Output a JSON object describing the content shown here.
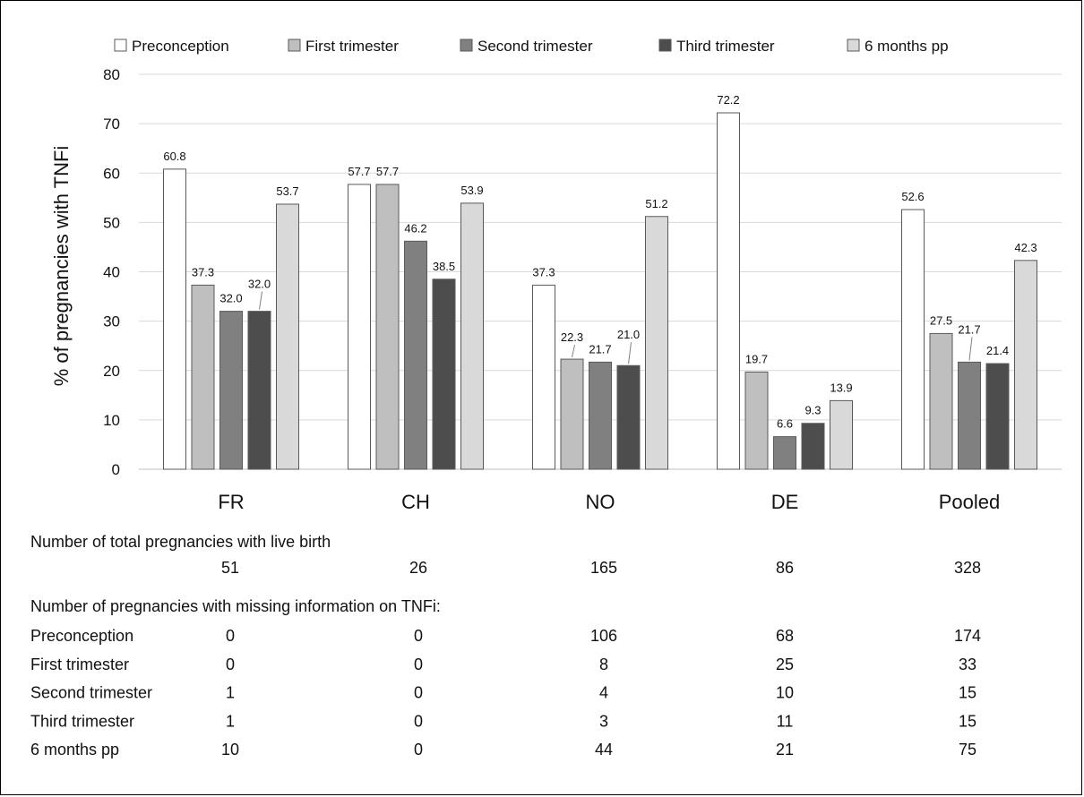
{
  "chart_data": {
    "type": "bar",
    "ylabel": "% of pregnancies with TNFi",
    "xlabel": "",
    "ylim": [
      0,
      80
    ],
    "yticks": [
      0,
      10,
      20,
      30,
      40,
      50,
      60,
      70,
      80
    ],
    "grid": true,
    "legend_position": "top",
    "categories": [
      "FR",
      "CH",
      "NO",
      "DE",
      "Pooled"
    ],
    "series": [
      {
        "name": "Preconception",
        "color": "#ffffff",
        "values": [
          60.8,
          57.7,
          37.3,
          72.2,
          52.6
        ],
        "labels": [
          "60.8",
          "57.7",
          "37.3",
          "72.2",
          "52.6"
        ]
      },
      {
        "name": "First trimester",
        "color": "#bfbfbf",
        "values": [
          37.3,
          57.7,
          22.3,
          19.7,
          27.5
        ],
        "labels": [
          "37.3",
          "57.7",
          "22.3",
          "19.7",
          "27.5"
        ]
      },
      {
        "name": "Second trimester",
        "color": "#808080",
        "values": [
          32.0,
          46.2,
          21.7,
          6.6,
          21.7
        ],
        "labels": [
          "32.0",
          "46.2",
          "21.7",
          "6.6",
          "21.7"
        ]
      },
      {
        "name": "Third trimester",
        "color": "#4d4d4d",
        "values": [
          32.0,
          38.5,
          21.0,
          9.3,
          21.4
        ],
        "labels": [
          "32.0",
          "38.5",
          "21.0",
          "9.3",
          "21.4"
        ]
      },
      {
        "name": "6 months pp",
        "color": "#d9d9d9",
        "values": [
          53.7,
          53.9,
          51.2,
          13.9,
          42.3
        ],
        "labels": [
          "53.7",
          "53.9",
          "51.2",
          "13.9",
          "42.3"
        ]
      }
    ]
  },
  "table": {
    "total_heading": "Number of total pregnancies with live birth",
    "total_values": [
      "51",
      "26",
      "165",
      "86",
      "328"
    ],
    "missing_heading": "Number of pregnancies with missing information on TNFi:",
    "missing_rows": [
      {
        "label": "Preconception",
        "values": [
          "0",
          "0",
          "106",
          "68",
          "174"
        ]
      },
      {
        "label": "First trimester",
        "values": [
          "0",
          "0",
          "8",
          "25",
          "33"
        ]
      },
      {
        "label": "Second trimester",
        "values": [
          "1",
          "0",
          "4",
          "10",
          "15"
        ]
      },
      {
        "label": "Third trimester",
        "values": [
          "1",
          "0",
          "3",
          "11",
          "15"
        ]
      },
      {
        "label": "6 months pp",
        "values": [
          "10",
          "0",
          "44",
          "21",
          "75"
        ]
      }
    ]
  }
}
